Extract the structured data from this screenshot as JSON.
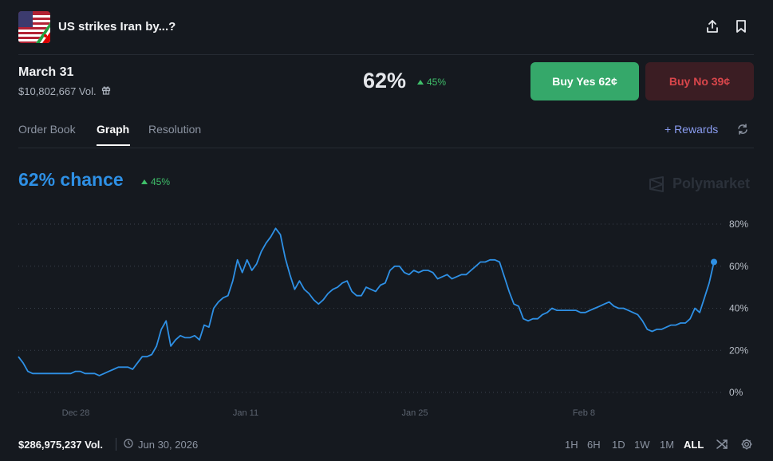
{
  "header": {
    "title": "US strikes Iran by...?",
    "flag_icon": "us-iran-flag-icon"
  },
  "market": {
    "date": "March 31",
    "volume": "$10,802,667 Vol.",
    "probability": "62%",
    "change": "45%",
    "buy_yes_label": "Buy Yes",
    "buy_yes_price": "62¢",
    "buy_no_label": "Buy No",
    "buy_no_price": "39¢"
  },
  "tabs": [
    {
      "label": "Order Book"
    },
    {
      "label": "Graph"
    },
    {
      "label": "Resolution"
    }
  ],
  "rewards_label": "+ Rewards",
  "chance": {
    "text": "62% chance",
    "change": "45%"
  },
  "watermark": "Polymarket",
  "colors": {
    "line": "#2e90e5",
    "yes": "#35a86a",
    "no": "#d9464b",
    "up": "#3fbf6a"
  },
  "chart_data": {
    "type": "line",
    "y_ticks": [
      "80%",
      "60%",
      "40%",
      "20%",
      "0%"
    ],
    "x_ticks": [
      "Dec 28",
      "Jan 11",
      "Jan 25",
      "Feb 8"
    ],
    "ylim": [
      0,
      80
    ],
    "series": [
      {
        "values": [
          17,
          14,
          10,
          9,
          9,
          9,
          9,
          9,
          9,
          9,
          9,
          9,
          10,
          10,
          9,
          9,
          9,
          8,
          9,
          10,
          11,
          12,
          12,
          12,
          11,
          14,
          17,
          17,
          18,
          22,
          30,
          34,
          22,
          25,
          27,
          26,
          26,
          27,
          25,
          32,
          31,
          40,
          43,
          45,
          46,
          53,
          63,
          57,
          63,
          58,
          61,
          67,
          71,
          74,
          78,
          75,
          64,
          56,
          49,
          53,
          49,
          47,
          44,
          42,
          44,
          47,
          49,
          50,
          52,
          53,
          48,
          46,
          46,
          50,
          49,
          48,
          51,
          52,
          58,
          60,
          60,
          57,
          56,
          58,
          57,
          58,
          58,
          57,
          54,
          55,
          56,
          54,
          55,
          56,
          56,
          58,
          60,
          62,
          62,
          63,
          63,
          62,
          55,
          48,
          42,
          41,
          35,
          34,
          35,
          35,
          37,
          38,
          40,
          39,
          39,
          39,
          39,
          39,
          38,
          38,
          39,
          40,
          41,
          42,
          43,
          41,
          40,
          40,
          39,
          38,
          37,
          34,
          30,
          29,
          30,
          30,
          31,
          32,
          32,
          33,
          33,
          35,
          40,
          38,
          45,
          52,
          62
        ]
      }
    ]
  },
  "footer": {
    "total_volume": "$286,975,237 Vol.",
    "end_date": "Jun 30, 2026",
    "ranges": [
      "1H",
      "6H",
      "1D",
      "1W",
      "1M",
      "ALL"
    ]
  }
}
